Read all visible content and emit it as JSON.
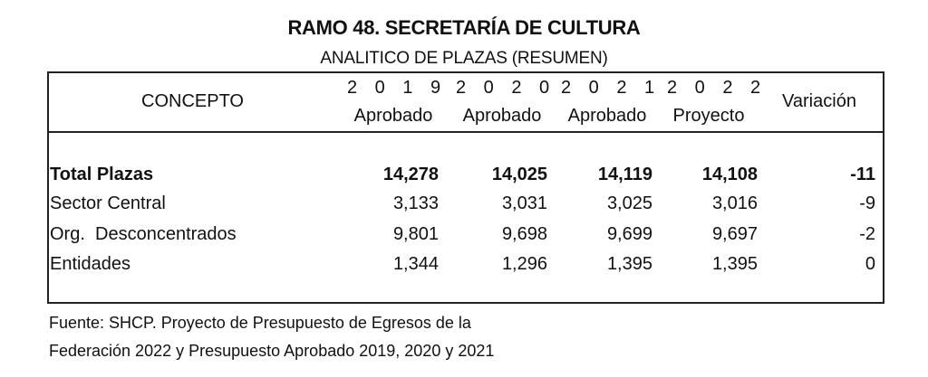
{
  "title": "RAMO 48. SECRETARÍA DE CULTURA",
  "subtitle": "ANALITICO DE PLAZAS (RESUMEN)",
  "table": {
    "concept_header": "CONCEPTO",
    "columns": [
      {
        "year": "2 0 1 9",
        "label": "Aprobado"
      },
      {
        "year": "2 0 2 0",
        "label": "Aprobado"
      },
      {
        "year": "2 0 2 1",
        "label": "Aprobado"
      },
      {
        "year": "2 0 2 2",
        "label": "Proyecto"
      }
    ],
    "variation_header": "Variación",
    "rows": [
      {
        "concept": "Total Plazas",
        "values": [
          "14,278",
          "14,025",
          "14,119",
          "14,108"
        ],
        "variation": "-11"
      },
      {
        "concept": "Sector Central",
        "values": [
          "3,133",
          "3,031",
          "3,025",
          "3,016"
        ],
        "variation": "-9"
      },
      {
        "concept": "Org.  Desconcentrados",
        "values": [
          "9,801",
          "9,698",
          "9,699",
          "9,697"
        ],
        "variation": "-2"
      },
      {
        "concept": "Entidades",
        "values": [
          "1,344",
          "1,296",
          "1,395",
          "1,395"
        ],
        "variation": "0"
      }
    ]
  },
  "source_lines": [
    "Fuente: SHCP. Proyecto de Presupuesto de Egresos de la",
    "Federación 2022 y Presupuesto Aprobado 2019, 2020 y 2021"
  ]
}
